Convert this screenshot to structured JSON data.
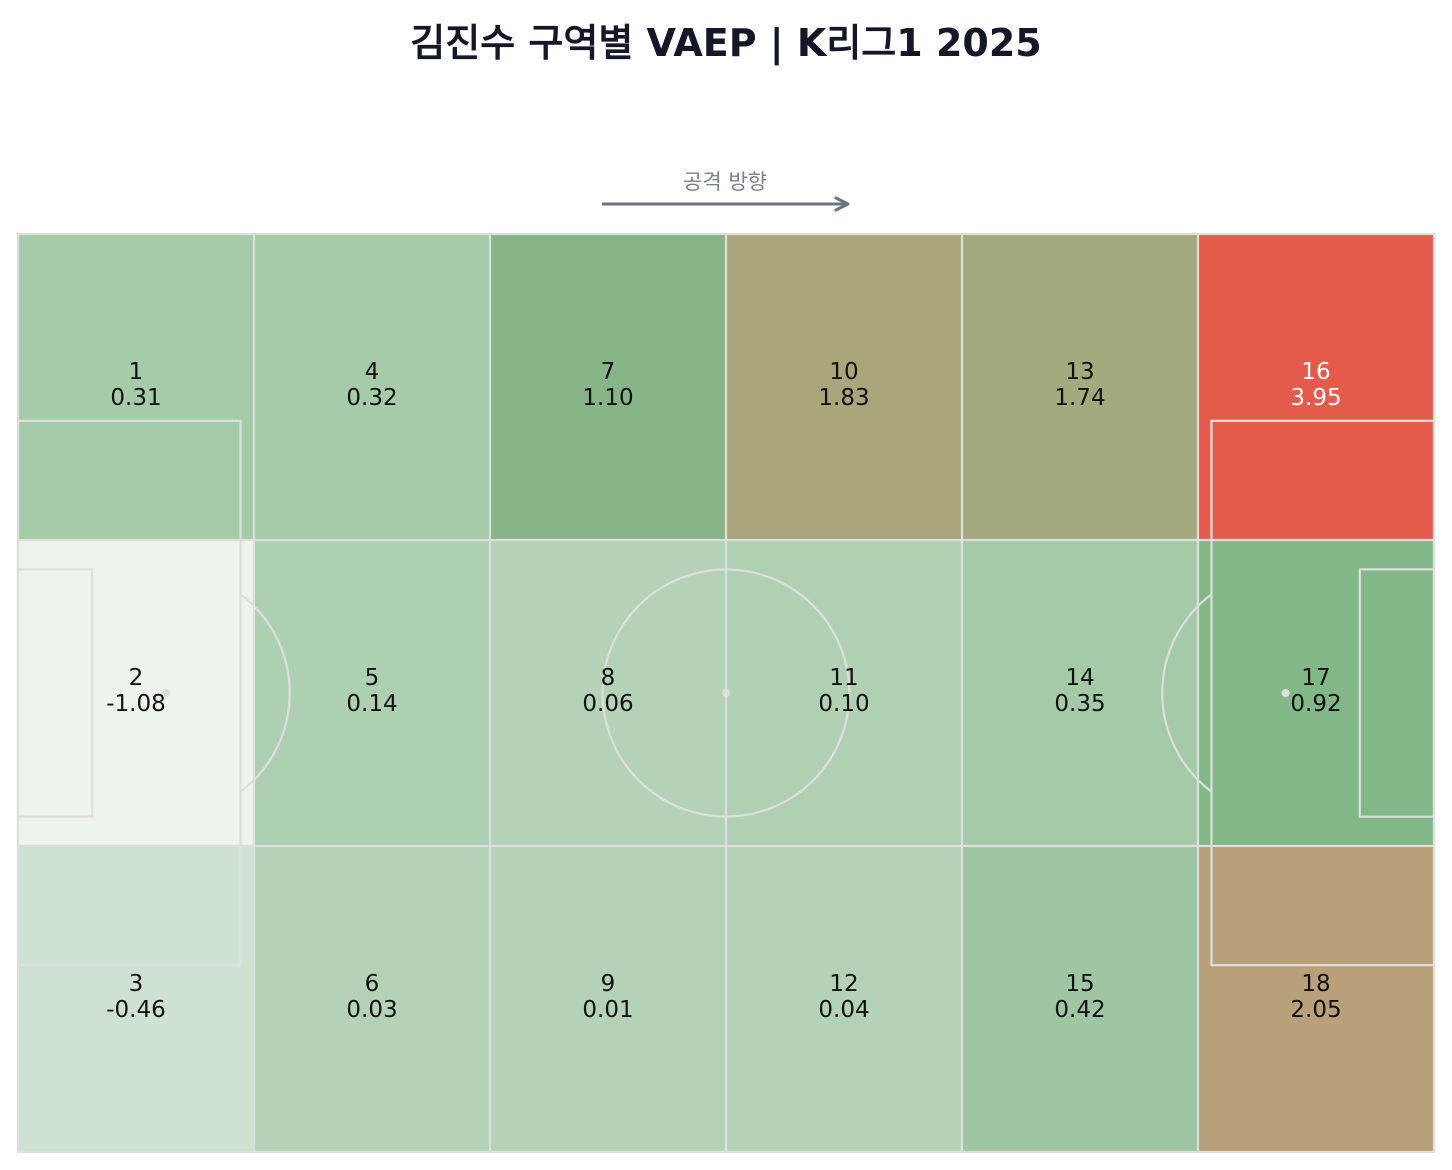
{
  "title": "김진수 구역별 VAEP | K리그1 2025",
  "attack_direction_label": "공격 방향",
  "colors": {
    "arrow": "#6b7280",
    "pitch_lines": "#dedede",
    "text_dark": "#111111",
    "text_light": "#ffffff",
    "scale_low": "#edf4ec",
    "scale_mid": "#82b888",
    "scale_high": "#e55b4b"
  },
  "chart_data": {
    "type": "heatmap",
    "title": "김진수 구역별 VAEP | K리그1 2025",
    "grid": {
      "columns": 6,
      "rows": 3
    },
    "zones": [
      {
        "id": "1",
        "value": "0.31",
        "col": 0,
        "row": 0,
        "color": "#a5cba9",
        "text_color": "#111111"
      },
      {
        "id": "2",
        "value": "-1.08",
        "col": 0,
        "row": 1,
        "color": "#edf4ec",
        "text_color": "#111111"
      },
      {
        "id": "3",
        "value": "-0.46",
        "col": 0,
        "row": 2,
        "color": "#cfe1d3",
        "text_color": "#111111"
      },
      {
        "id": "4",
        "value": "0.32",
        "col": 1,
        "row": 0,
        "color": "#a5cba9",
        "text_color": "#111111"
      },
      {
        "id": "5",
        "value": "0.14",
        "col": 1,
        "row": 1,
        "color": "#aed0b2",
        "text_color": "#111111"
      },
      {
        "id": "6",
        "value": "0.03",
        "col": 1,
        "row": 2,
        "color": "#b4d2b7",
        "text_color": "#111111"
      },
      {
        "id": "7",
        "value": "1.10",
        "col": 2,
        "row": 0,
        "color": "#87b588",
        "text_color": "#111111"
      },
      {
        "id": "8",
        "value": "0.06",
        "col": 2,
        "row": 1,
        "color": "#b4d2b7",
        "text_color": "#111111"
      },
      {
        "id": "9",
        "value": "0.01",
        "col": 2,
        "row": 2,
        "color": "#b4d2b7",
        "text_color": "#111111"
      },
      {
        "id": "10",
        "value": "1.83",
        "col": 3,
        "row": 0,
        "color": "#aaa67c",
        "text_color": "#111111"
      },
      {
        "id": "11",
        "value": "0.10",
        "col": 3,
        "row": 1,
        "color": "#b0d0b3",
        "text_color": "#111111"
      },
      {
        "id": "12",
        "value": "0.04",
        "col": 3,
        "row": 2,
        "color": "#b4d2b7",
        "text_color": "#111111"
      },
      {
        "id": "13",
        "value": "1.74",
        "col": 4,
        "row": 0,
        "color": "#a6a87d",
        "text_color": "#111111"
      },
      {
        "id": "14",
        "value": "0.35",
        "col": 4,
        "row": 1,
        "color": "#a4caa8",
        "text_color": "#111111"
      },
      {
        "id": "15",
        "value": "0.42",
        "col": 4,
        "row": 2,
        "color": "#9fc6a3",
        "text_color": "#111111"
      },
      {
        "id": "16",
        "value": "3.95",
        "col": 5,
        "row": 0,
        "color": "#e55b4b",
        "text_color": "#ffffff"
      },
      {
        "id": "17",
        "value": "0.92",
        "col": 5,
        "row": 1,
        "color": "#82b888",
        "text_color": "#111111"
      },
      {
        "id": "18",
        "value": "2.05",
        "col": 5,
        "row": 2,
        "color": "#b7a07a",
        "text_color": "#111111"
      }
    ]
  }
}
